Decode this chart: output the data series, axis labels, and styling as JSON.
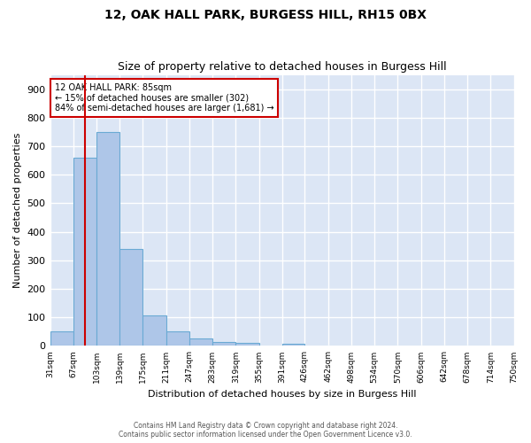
{
  "title": "12, OAK HALL PARK, BURGESS HILL, RH15 0BX",
  "subtitle": "Size of property relative to detached houses in Burgess Hill",
  "xlabel": "Distribution of detached houses by size in Burgess Hill",
  "ylabel": "Number of detached properties",
  "footer_line1": "Contains HM Land Registry data © Crown copyright and database right 2024.",
  "footer_line2": "Contains public sector information licensed under the Open Government Licence v3.0.",
  "annotation_title": "12 OAK HALL PARK: 85sqm",
  "annotation_line1": "← 15% of detached houses are smaller (302)",
  "annotation_line2": "84% of semi-detached houses are larger (1,681) →",
  "bar_color": "#aec6e8",
  "bar_edge_color": "#6aaad4",
  "background_color": "#dce6f5",
  "grid_color": "#ffffff",
  "vline_color": "#cc0000",
  "vline_x": 85,
  "bins": [
    31,
    67,
    103,
    139,
    175,
    211,
    247,
    283,
    319,
    355,
    391,
    426,
    462,
    498,
    534,
    570,
    606,
    642,
    678,
    714,
    750
  ],
  "bin_labels": [
    "31sqm",
    "67sqm",
    "103sqm",
    "139sqm",
    "175sqm",
    "211sqm",
    "247sqm",
    "283sqm",
    "319sqm",
    "355sqm",
    "391sqm",
    "426sqm",
    "462sqm",
    "498sqm",
    "534sqm",
    "570sqm",
    "606sqm",
    "642sqm",
    "678sqm",
    "714sqm",
    "750sqm"
  ],
  "counts": [
    50,
    660,
    750,
    340,
    108,
    50,
    25,
    15,
    12,
    0,
    8,
    0,
    0,
    0,
    0,
    0,
    0,
    0,
    0,
    0
  ],
  "ylim": [
    0,
    950
  ],
  "yticks": [
    0,
    100,
    200,
    300,
    400,
    500,
    600,
    700,
    800,
    900
  ],
  "annotation_box_color": "#ffffff",
  "annotation_box_edgecolor": "#cc0000",
  "property_size": 85
}
